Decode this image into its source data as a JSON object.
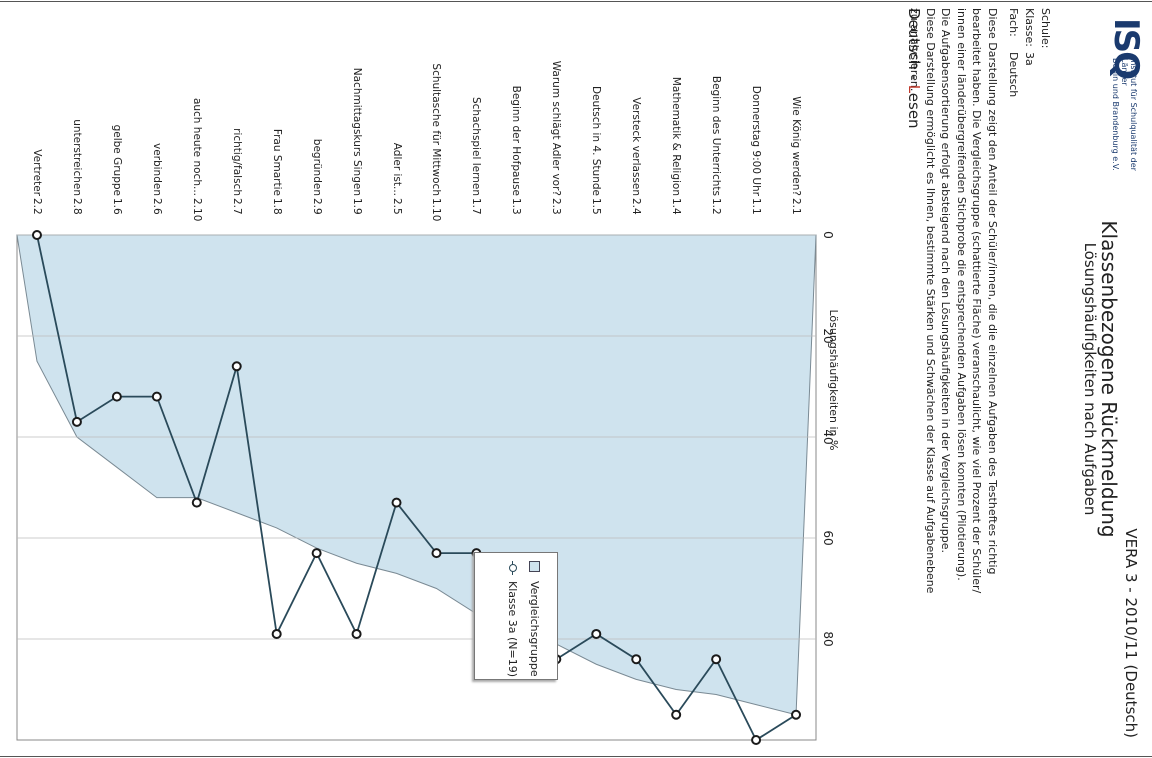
{
  "header": {
    "logo_text": "ISQ",
    "org_name_line1": "Institut für Schulqualität der Länder",
    "org_name_line2": "Berlin und Brandenburg e.V.",
    "exam": "VERA 3 - 2010/11 (Deutsch)",
    "title": "Klassenbezogene Rückmeldung",
    "subtitle": "Lösungshäufigkeiten nach Aufgaben"
  },
  "meta": {
    "school_label": "Schule:",
    "school_value": "",
    "class_label": "Klasse:",
    "class_value": "3a",
    "subject_label": "Fach:",
    "subject_value": "Deutsch"
  },
  "description": [
    "Diese Darstellung zeigt den Anteil der Schüler/innen, die die einzelnen Aufgaben des Testheftes richtig",
    "bearbeitet haben. Die Vergleichsgruppe (schattierte Fläche) veranschaulicht, wie viel Prozent der Schüler/",
    "innen einer länderübergreifenden Stichprobe die entsprechenden Aufgaben lösen konnten (Pilotierung).",
    "Die Aufgabensortierung erfolgt absteigend nach den Lösungshäufigkeiten in der Vergleichsgruppe.",
    "Diese Darstellung ermöglicht es Ihnen, bestimmte Stärken und Schwächen der Klasse auf Aufgabenebene",
    "zu analysieren."
  ],
  "section": {
    "prefix": "Deutsch - ",
    "highlight": "L",
    "rest": "esen"
  },
  "chart_data": {
    "type": "area",
    "xlabel": "Lösungshäufigkeiten in %",
    "xlim": [
      0,
      100
    ],
    "x_ticks": [
      "0",
      "20",
      "40",
      "60",
      "80"
    ],
    "grid": true,
    "legend_position": "bottom-right",
    "categories": [
      {
        "label": "Wie König werden?",
        "id": "2.1"
      },
      {
        "label": "Donnerstag 9:00 Uhr",
        "id": "1.1"
      },
      {
        "label": "Beginn des Unterrichts",
        "id": "1.2"
      },
      {
        "label": "Mathematik & Religion",
        "id": "1.4"
      },
      {
        "label": "Versteck verlassen",
        "id": "2.4"
      },
      {
        "label": "Deutsch in 4. Stunde",
        "id": "1.5"
      },
      {
        "label": "Warum schlägt Adler vor?",
        "id": "2.3"
      },
      {
        "label": "Beginn der Hofpause",
        "id": "1.3"
      },
      {
        "label": "Schachspiel lernen",
        "id": "1.7"
      },
      {
        "label": "Schultasche für Mittwoch",
        "id": "1.10"
      },
      {
        "label": "Adler ist...",
        "id": "2.5"
      },
      {
        "label": "Nachmittagskurs Singen",
        "id": "1.9"
      },
      {
        "label": "begründen",
        "id": "2.9"
      },
      {
        "label": "Frau Smartie",
        "id": "1.8"
      },
      {
        "label": "richtig/falsch",
        "id": "2.7"
      },
      {
        "label": "auch heute noch...",
        "id": "2.10"
      },
      {
        "label": "verbinden",
        "id": "2.6"
      },
      {
        "label": "gelbe Gruppe",
        "id": "1.6"
      },
      {
        "label": "unterstreichen",
        "id": "2.8"
      },
      {
        "label": "Vertreter",
        "id": "2.2"
      }
    ],
    "series": [
      {
        "name": "Vergleichsgruppe",
        "type": "area",
        "color": "#cfe3ee",
        "values": [
          95,
          93,
          91,
          90,
          88,
          85,
          81,
          77,
          75,
          70,
          67,
          65,
          62,
          58,
          55,
          52,
          52,
          46,
          40,
          25
        ]
      },
      {
        "name": "Klasse 3a (N=19)",
        "type": "line",
        "color": "#2a4a5a",
        "values": [
          95,
          100,
          84,
          95,
          84,
          79,
          84,
          84,
          63,
          63,
          53,
          79,
          63,
          79,
          26,
          53,
          32,
          32,
          37,
          0
        ]
      }
    ]
  },
  "legend": {
    "item1": "Vergleichsgruppe",
    "item2": "Klasse 3a (N=19)"
  }
}
